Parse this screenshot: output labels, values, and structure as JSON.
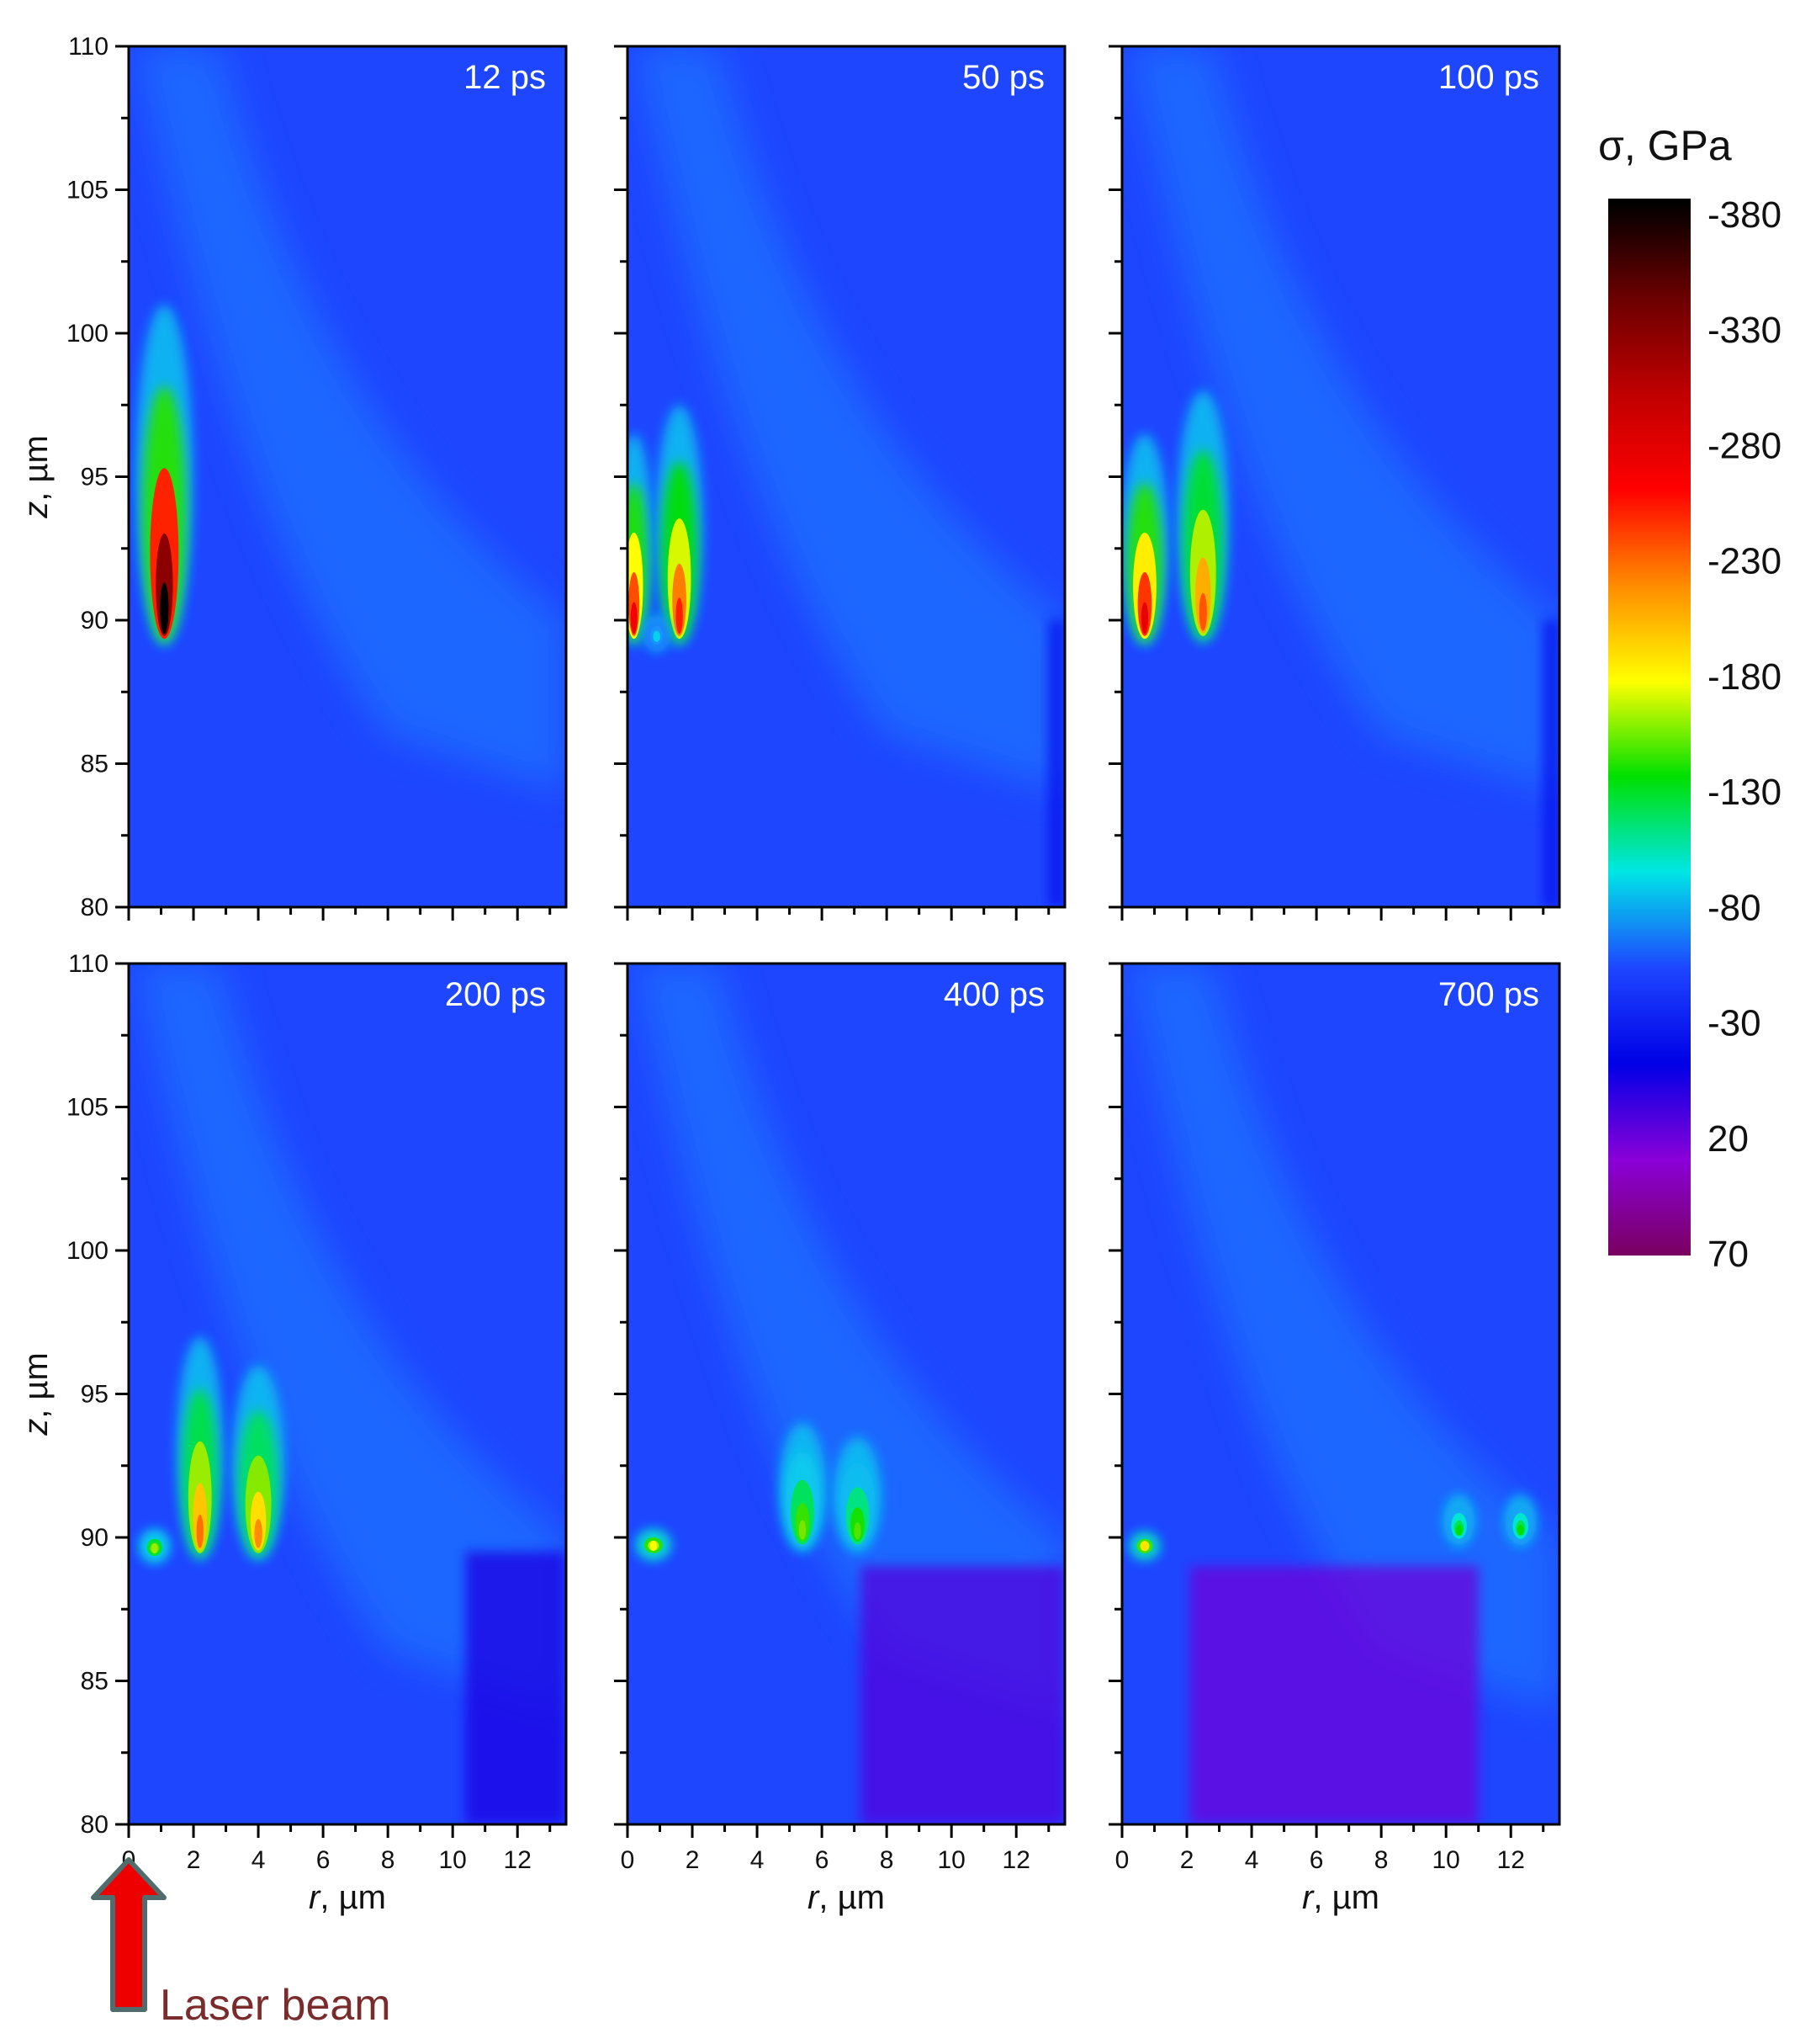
{
  "chart_data": {
    "type": "heatmap",
    "panels": [
      {
        "label": "12 ps",
        "jets": [
          {
            "r": 1.1,
            "z": 89.6,
            "top": 101.0,
            "peak": 380,
            "w": 0.55
          }
        ],
        "bottom_purple": [],
        "edge_band": false
      },
      {
        "label": "50 ps",
        "jets": [
          {
            "r": 0.2,
            "z": 89.6,
            "top": 96.5,
            "peak": 250,
            "w": 0.35
          },
          {
            "r": 1.6,
            "z": 89.6,
            "top": 97.5,
            "peak": 230,
            "w": 0.45
          },
          {
            "r": 0.9,
            "z": 89.4,
            "top": 90.2,
            "peak": 40,
            "w": 0.25
          }
        ],
        "bottom_purple": [],
        "edge_band": true
      },
      {
        "label": "100 ps",
        "jets": [
          {
            "r": 0.7,
            "z": 89.6,
            "top": 96.5,
            "peak": 260,
            "w": 0.45
          },
          {
            "r": 2.5,
            "z": 89.7,
            "top": 98.0,
            "peak": 210,
            "w": 0.5
          }
        ],
        "bottom_purple": [],
        "edge_band": true
      },
      {
        "label": "200 ps",
        "jets": [
          {
            "r": 0.8,
            "z": 89.6,
            "top": 90.3,
            "peak": 120,
            "w": 0.3
          },
          {
            "r": 2.2,
            "z": 89.7,
            "top": 97.0,
            "peak": 200,
            "w": 0.45
          },
          {
            "r": 4.0,
            "z": 89.7,
            "top": 96.0,
            "peak": 190,
            "w": 0.5
          }
        ],
        "bottom_purple": [
          {
            "r0": 10.4,
            "r1": 13.5,
            "z0": 80.0,
            "z1": 89.5,
            "v": 30
          }
        ],
        "edge_band": false
      },
      {
        "label": "400 ps",
        "jets": [
          {
            "r": 0.8,
            "z": 89.7,
            "top": 90.3,
            "peak": 150,
            "w": 0.35
          },
          {
            "r": 5.4,
            "z": 90.0,
            "top": 94.0,
            "peak": 110,
            "w": 0.45
          },
          {
            "r": 7.1,
            "z": 90.0,
            "top": 93.5,
            "peak": 100,
            "w": 0.45
          }
        ],
        "bottom_purple": [
          {
            "r0": 7.2,
            "r1": 13.5,
            "z0": 80.0,
            "z1": 89.0,
            "v": 40
          }
        ],
        "edge_band": false
      },
      {
        "label": "700 ps",
        "jets": [
          {
            "r": 0.7,
            "z": 89.7,
            "top": 90.2,
            "peak": 160,
            "w": 0.3
          },
          {
            "r": 10.4,
            "z": 90.2,
            "top": 91.5,
            "peak": 80,
            "w": 0.3
          },
          {
            "r": 12.3,
            "z": 90.2,
            "top": 91.5,
            "peak": 80,
            "w": 0.3
          }
        ],
        "bottom_purple": [
          {
            "r0": 2.1,
            "r1": 11.0,
            "z0": 80.0,
            "z1": 89.0,
            "v": 45
          }
        ],
        "edge_band": false
      }
    ],
    "x": {
      "label_italic": "r",
      "label_unit": ", µm",
      "range": [
        0,
        13.5
      ],
      "ticks": [
        "0",
        "2",
        "4",
        "6",
        "8",
        "10",
        "12"
      ]
    },
    "y": {
      "label_italic": "z",
      "label_unit": ", µm",
      "range": [
        80,
        110
      ],
      "ticks": [
        "80",
        "85",
        "90",
        "95",
        "100",
        "105",
        "110"
      ]
    },
    "colorbar": {
      "title": "σ, GPa",
      "labels": [
        "-380",
        "-330",
        "-280",
        "-230",
        "-180",
        "-130",
        "-80",
        "-30",
        "20",
        "70"
      ],
      "colors": [
        "#000000",
        "#6b0000",
        "#c00000",
        "#ff0000",
        "#ff8c00",
        "#ffff00",
        "#00e000",
        "#00e6e6",
        "#1e46ff",
        "#0000e6",
        "#8a00d8",
        "#7a0060"
      ]
    },
    "annotation": "Laser beam"
  }
}
